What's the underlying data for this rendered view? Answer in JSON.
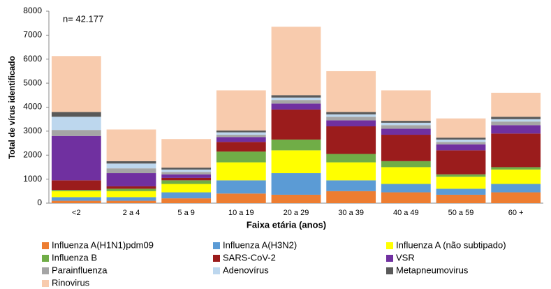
{
  "chart_data": {
    "type": "stacked_bar",
    "annotation": "n= 42.177",
    "x_label": "Faixa etária (anos)",
    "y_label": "Total de vírus identificado",
    "categories": [
      "<2",
      "2 a 4",
      "5 a 9",
      "10 a 19",
      "20 a 29",
      "30 a 39",
      "40 a 49",
      "50 a 59",
      "60 +"
    ],
    "ylim": [
      0,
      8000
    ],
    "yticks": [
      0,
      1000,
      2000,
      3000,
      4000,
      5000,
      6000,
      7000,
      8000
    ],
    "series": [
      {
        "name": "Influenza A(H1N1)pdm09",
        "color": "#ed7d31",
        "values": [
          100,
          100,
          200,
          400,
          350,
          500,
          450,
          350,
          450
        ]
      },
      {
        "name": "Influenza A(H3N2)",
        "color": "#5b9bd5",
        "values": [
          150,
          150,
          250,
          550,
          900,
          450,
          350,
          250,
          350
        ]
      },
      {
        "name": "Influenza A (não subtipado)",
        "color": "#ffff00",
        "values": [
          250,
          250,
          350,
          750,
          950,
          750,
          700,
          500,
          600
        ]
      },
      {
        "name": "Influenza B",
        "color": "#70ad47",
        "values": [
          50,
          100,
          150,
          450,
          450,
          350,
          250,
          100,
          100
        ]
      },
      {
        "name": "SARS-CoV-2",
        "color": "#9b1c1c",
        "values": [
          400,
          100,
          100,
          400,
          1250,
          1150,
          1100,
          1000,
          1400
        ]
      },
      {
        "name": "VSR",
        "color": "#7030a0",
        "values": [
          1850,
          550,
          150,
          200,
          250,
          250,
          250,
          250,
          350
        ]
      },
      {
        "name": "Parainfluenza",
        "color": "#a5a5a5",
        "values": [
          250,
          200,
          100,
          100,
          150,
          150,
          150,
          100,
          150
        ]
      },
      {
        "name": "Adenovírus",
        "color": "#bdd7ee",
        "values": [
          550,
          200,
          100,
          100,
          100,
          100,
          100,
          100,
          100
        ]
      },
      {
        "name": "Metapneumovirus",
        "color": "#595959",
        "values": [
          200,
          100,
          80,
          80,
          100,
          100,
          80,
          80,
          100
        ]
      },
      {
        "name": "Rinovirus",
        "color": "#f8cbad",
        "values": [
          2330,
          1320,
          1190,
          1670,
          2850,
          1700,
          1270,
          800,
          1000
        ]
      }
    ]
  }
}
